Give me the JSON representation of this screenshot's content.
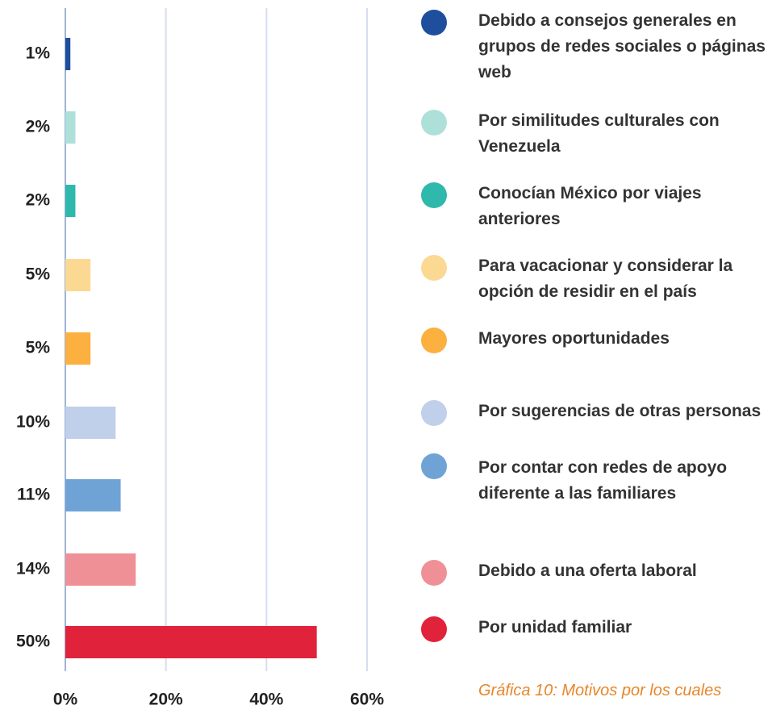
{
  "chart_data": {
    "type": "hbar",
    "categories": [
      "Debido a consejos generales en grupos de redes sociales o páginas web",
      "Por similitudes culturales con Venezuela",
      "Conocían México por viajes anteriores",
      "Para vacacionar y considerar la opción de residir en el país",
      "Mayores oportunidades",
      "Por sugerencias de otras personas",
      "Por contar con redes de apoyo diferente a las familiares",
      "Debido a una oferta laboral",
      "Por unidad familiar"
    ],
    "values": [
      1,
      2,
      2,
      5,
      5,
      10,
      11,
      14,
      50
    ],
    "value_labels": [
      "1%",
      "2%",
      "2%",
      "5%",
      "5%",
      "10%",
      "11%",
      "14%",
      "50%"
    ],
    "colors": [
      "#1f4e9c",
      "#aee0da",
      "#2fb8ac",
      "#fcd992",
      "#fbb040",
      "#c0cfea",
      "#6fa3d6",
      "#ef9097",
      "#e0233a"
    ],
    "xlim": [
      0,
      60
    ],
    "xticks": [
      {
        "value": 0,
        "label": "0%"
      },
      {
        "value": 20,
        "label": "20%"
      },
      {
        "value": 40,
        "label": "40%"
      },
      {
        "value": 60,
        "label": "60%"
      }
    ],
    "grid": true,
    "caption": "Gráfica 10: Motivos por los cuales"
  }
}
